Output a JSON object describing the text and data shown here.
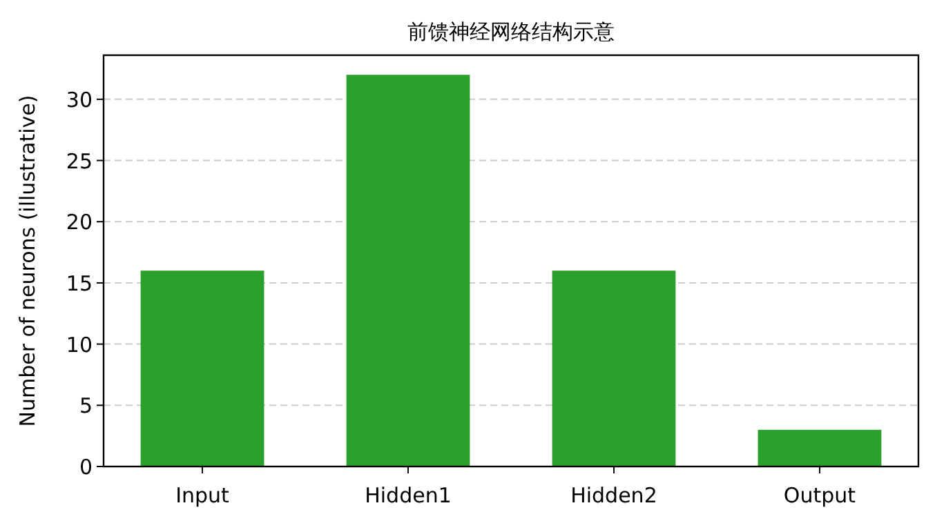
{
  "chart_data": {
    "type": "bar",
    "title": "前馈神经网络结构示意",
    "ylabel": "Number of neurons (illustrative)",
    "categories": [
      "Input",
      "Hidden1",
      "Hidden2",
      "Output"
    ],
    "values": [
      16,
      32,
      16,
      3
    ],
    "color": "#2ca02c",
    "ylim": [
      0,
      33.6
    ],
    "yticks": [
      0,
      5,
      10,
      15,
      20,
      25,
      30
    ],
    "grid": "y"
  }
}
